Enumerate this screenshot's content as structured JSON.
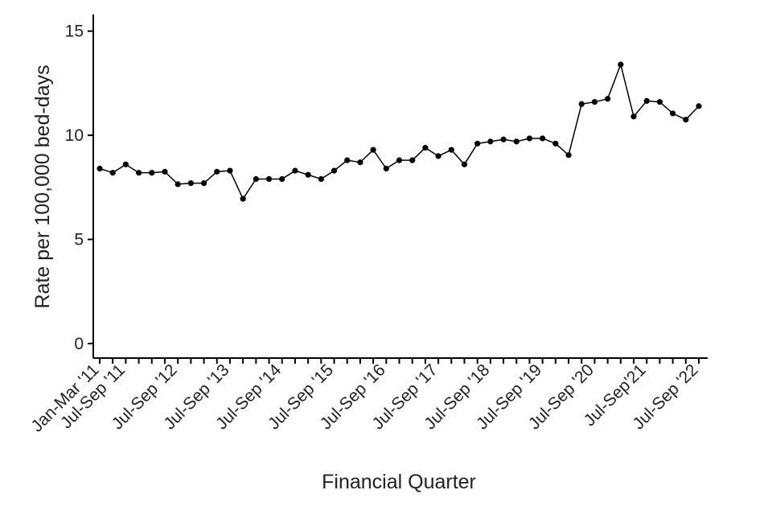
{
  "chart_data": {
    "type": "line",
    "xlabel": "Financial Quarter",
    "ylabel": "Rate per 100,000 bed-days",
    "ylim": [
      -0.7,
      15.8
    ],
    "yticks": [
      0,
      5,
      10,
      15
    ],
    "grid": false,
    "xtick_labels": [
      {
        "index": 0,
        "label": "Jan-Mar '11"
      },
      {
        "index": 2,
        "label": "Jul-Sep '11"
      },
      {
        "index": 6,
        "label": "Jul-Sep '12"
      },
      {
        "index": 10,
        "label": "Jul-Sep '13"
      },
      {
        "index": 14,
        "label": "Jul-Sep '14"
      },
      {
        "index": 18,
        "label": "Jul-Sep '15"
      },
      {
        "index": 22,
        "label": "Jul-Sep '16"
      },
      {
        "index": 26,
        "label": "Jul-Sep '17"
      },
      {
        "index": 30,
        "label": "Jul-Sep '18"
      },
      {
        "index": 34,
        "label": "Jul-Sep '19"
      },
      {
        "index": 38,
        "label": "Jul-Sep '20"
      },
      {
        "index": 42,
        "label": "Jul-Sep'21"
      },
      {
        "index": 46,
        "label": "Jul-Sep '22"
      }
    ],
    "series": [
      {
        "values": [
          8.4,
          8.2,
          8.6,
          8.2,
          8.2,
          8.25,
          7.65,
          7.7,
          7.7,
          8.25,
          8.3,
          6.95,
          7.9,
          7.9,
          7.9,
          8.3,
          8.1,
          7.9,
          8.3,
          8.8,
          8.7,
          9.3,
          8.4,
          8.8,
          8.8,
          9.4,
          9.0,
          9.3,
          8.6,
          9.6,
          9.7,
          9.8,
          9.7,
          9.85,
          9.85,
          9.6,
          9.05,
          11.5,
          11.6,
          11.75,
          13.4,
          10.9,
          11.65,
          11.6,
          11.05,
          10.75,
          11.4
        ]
      }
    ]
  }
}
